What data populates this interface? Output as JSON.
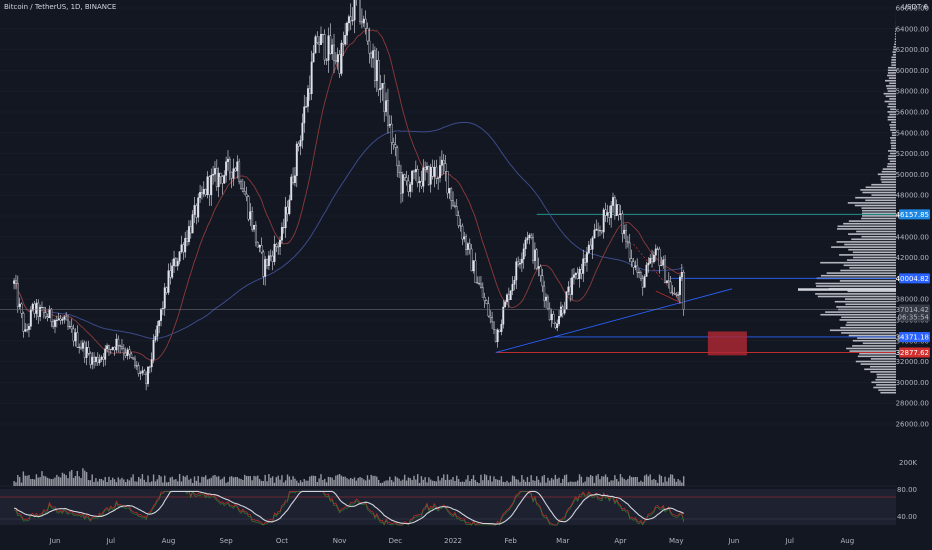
{
  "header": {
    "symbol_title": "Bitcoin / TetherUS, 1D, BINANCE",
    "currency_label": "USDT",
    "currency_icon": "6"
  },
  "chart_data": {
    "type": "candlestick",
    "title": "Bitcoin / TetherUS, 1D, BINANCE",
    "ylabel": "USDT",
    "ylim": [
      28000,
      66000
    ],
    "x_tick_labels": [
      "Jun",
      "Jul",
      "Aug",
      "Sep",
      "Oct",
      "Nov",
      "Dec",
      "2022",
      "Feb",
      "Mar",
      "Apr",
      "May",
      "Jun",
      "Jul",
      "Aug"
    ],
    "y_tick_labels": [
      "66000.00",
      "64000.00",
      "62000.00",
      "60000.00",
      "58000.00",
      "56000.00",
      "54000.00",
      "52000.00",
      "50000.00",
      "48000.00",
      "46000.00",
      "44000.00",
      "42000.00",
      "40000.00",
      "38000.00",
      "36000.00",
      "34000.00",
      "32000.00",
      "30000.00",
      "28000.00",
      "26000.00"
    ],
    "price_path_anchors": [
      {
        "date": "2021-05-10",
        "price": 39500
      },
      {
        "date": "2021-05-16",
        "price": 34500
      },
      {
        "date": "2021-05-20",
        "price": 37000
      },
      {
        "date": "2021-06-05",
        "price": 35800
      },
      {
        "date": "2021-06-22",
        "price": 32000
      },
      {
        "date": "2021-07-05",
        "price": 34000
      },
      {
        "date": "2021-07-20",
        "price": 30000
      },
      {
        "date": "2021-08-01",
        "price": 40000
      },
      {
        "date": "2021-08-22",
        "price": 49000
      },
      {
        "date": "2021-09-07",
        "price": 51000
      },
      {
        "date": "2021-09-21",
        "price": 41000
      },
      {
        "date": "2021-10-01",
        "price": 44000
      },
      {
        "date": "2021-10-20",
        "price": 63000
      },
      {
        "date": "2021-11-01",
        "price": 61000
      },
      {
        "date": "2021-11-10",
        "price": 67000
      },
      {
        "date": "2021-11-25",
        "price": 57000
      },
      {
        "date": "2021-12-04",
        "price": 49000
      },
      {
        "date": "2021-12-27",
        "price": 50500
      },
      {
        "date": "2022-01-10",
        "price": 42000
      },
      {
        "date": "2022-01-24",
        "price": 34500
      },
      {
        "date": "2022-02-10",
        "price": 44500
      },
      {
        "date": "2022-02-24",
        "price": 35500
      },
      {
        "date": "2022-03-28",
        "price": 47500
      },
      {
        "date": "2022-04-12",
        "price": 39500
      },
      {
        "date": "2022-04-21",
        "price": 42500
      },
      {
        "date": "2022-04-30",
        "price": 38000
      },
      {
        "date": "2022-05-04",
        "price": 39800
      },
      {
        "date": "2022-05-05",
        "price": 37014
      }
    ],
    "horizontal_levels": [
      {
        "price": 46157.85,
        "label": "46157.85",
        "color": "#2196f3"
      },
      {
        "price": 40004.82,
        "label": "40004.82",
        "color": "#2962ff"
      },
      {
        "price": 34371.18,
        "label": "34371.18",
        "color": "#2962ff"
      },
      {
        "price": 32877.62,
        "label": "32877.62",
        "color": "#d32f2f"
      }
    ],
    "last_price": {
      "label": "37014.42",
      "countdown": "06:35:54"
    },
    "volume_axis_label": "200K",
    "oscillator_axis_labels": [
      "80.00",
      "40.00"
    ]
  },
  "colors": {
    "background": "#131722",
    "candle": "#e0e3eb",
    "support_blue": "#2962ff",
    "resistance_teal": "#26a69a",
    "danger_red": "#d32f2f",
    "zone_fill": "#b22833",
    "ma_slow": "#3b4b8a",
    "ma_fast": "#8b3a3a",
    "profile": "#d1d4dc"
  }
}
